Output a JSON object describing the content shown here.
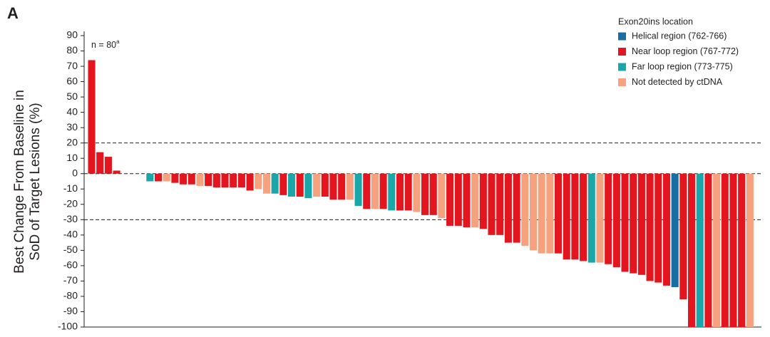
{
  "chart_data": {
    "type": "waterfall",
    "panel_label": "A",
    "y_label_lines": [
      "Best Change From Baseline in",
      "SoD of Target Lesions (%)"
    ],
    "annotation": {
      "text": "n = 80",
      "superscript": "a"
    },
    "legend": {
      "title": "Exon20ins location",
      "items": [
        {
          "name": "Helical region (762-766)",
          "color": "#1a6ca5"
        },
        {
          "name": "Near loop region (767-772)",
          "color": "#e3161f"
        },
        {
          "name": "Far loop region (773-775)",
          "color": "#1ba6a8"
        },
        {
          "name": "Not detected by ctDNA",
          "color": "#f6a27f"
        }
      ]
    },
    "values": [
      74,
      14,
      11,
      2,
      0,
      0,
      0,
      -5,
      -5,
      -5,
      -6,
      -7,
      -7,
      -8,
      -8,
      -9,
      -9,
      -9,
      -9,
      -11,
      -10,
      -13,
      -13,
      -14,
      -15,
      -15,
      -16,
      -15,
      -15,
      -17,
      -17,
      -17,
      -21,
      -23,
      -23,
      -23,
      -24,
      -24,
      -24,
      -25,
      -27,
      -27,
      -29,
      -34,
      -34,
      -35,
      -35,
      -36,
      -40,
      -40,
      -45,
      -45,
      -47,
      -50,
      -52,
      -52,
      -52,
      -56,
      -56,
      -57,
      -58,
      -58,
      -59,
      -61,
      -64,
      -65,
      -66,
      -70,
      -71,
      -73,
      -74,
      -82,
      -100,
      -100,
      -100,
      -100,
      -100,
      -100,
      -100,
      -100
    ],
    "colors": [
      "#e3161f",
      "#e3161f",
      "#e3161f",
      "#e3161f",
      "#e3161f",
      "#e3161f",
      "#e3161f",
      "#1ba6a8",
      "#e3161f",
      "#f6a27f",
      "#e3161f",
      "#e3161f",
      "#e3161f",
      "#f6a27f",
      "#e3161f",
      "#e3161f",
      "#e3161f",
      "#e3161f",
      "#e3161f",
      "#e3161f",
      "#f6a27f",
      "#f6a27f",
      "#1ba6a8",
      "#e3161f",
      "#1ba6a8",
      "#e3161f",
      "#1ba6a8",
      "#f6a27f",
      "#e3161f",
      "#e3161f",
      "#e3161f",
      "#f6a27f",
      "#1ba6a8",
      "#e3161f",
      "#f6a27f",
      "#e3161f",
      "#1ba6a8",
      "#e3161f",
      "#e3161f",
      "#f6a27f",
      "#e3161f",
      "#e3161f",
      "#f6a27f",
      "#e3161f",
      "#e3161f",
      "#e3161f",
      "#f6a27f",
      "#e3161f",
      "#e3161f",
      "#e3161f",
      "#e3161f",
      "#e3161f",
      "#f6a27f",
      "#f6a27f",
      "#f6a27f",
      "#f6a27f",
      "#e3161f",
      "#e3161f",
      "#e3161f",
      "#e3161f",
      "#1ba6a8",
      "#f6a27f",
      "#e3161f",
      "#e3161f",
      "#e3161f",
      "#e3161f",
      "#e3161f",
      "#e3161f",
      "#e3161f",
      "#e3161f",
      "#1a6ca5",
      "#e3161f",
      "#e3161f",
      "#1ba6a8",
      "#e3161f",
      "#f6a27f",
      "#e3161f",
      "#e3161f",
      "#e3161f",
      "#f6a27f"
    ],
    "ylim": [
      -100,
      90
    ],
    "yticks": [
      90,
      80,
      70,
      60,
      50,
      40,
      30,
      20,
      10,
      0,
      -10,
      -20,
      -30,
      -40,
      -50,
      -60,
      -70,
      -80,
      -90,
      -100
    ],
    "reference_lines": [
      20,
      0,
      -30
    ]
  }
}
